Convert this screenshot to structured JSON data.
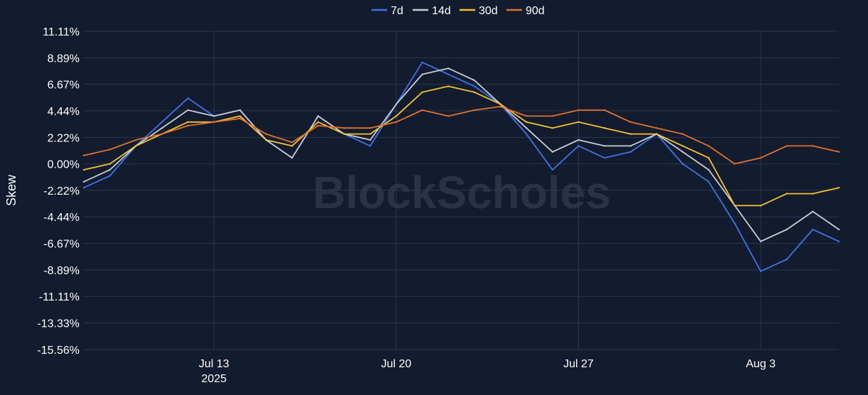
{
  "watermark": "BlockScholes",
  "chart_data": {
    "type": "line",
    "ylabel": "Skew",
    "xlabel": "",
    "x_range": [
      "2025-07-08",
      "2025-08-06"
    ],
    "ylim": [
      -15.56,
      11.11
    ],
    "yticks": [
      11.11,
      8.89,
      6.67,
      4.44,
      2.22,
      0.0,
      -2.22,
      -4.44,
      -6.67,
      -8.89,
      -11.11,
      -13.33,
      -15.56
    ],
    "ytick_labels": [
      "11.11%",
      "8.89%",
      "6.67%",
      "4.44%",
      "2.22%",
      "0.00%",
      "-2.22%",
      "-4.44%",
      "-6.67%",
      "-8.89%",
      "-11.11%",
      "-13.33%",
      "-15.56%"
    ],
    "xticks": [
      {
        "date": "2025-07-13",
        "label": "Jul 13",
        "sublabel": "2025"
      },
      {
        "date": "2025-07-20",
        "label": "Jul 20",
        "sublabel": ""
      },
      {
        "date": "2025-07-27",
        "label": "Jul 27",
        "sublabel": ""
      },
      {
        "date": "2025-08-03",
        "label": "Aug 3",
        "sublabel": ""
      }
    ],
    "grid": true,
    "legend_position": "top-center",
    "series": [
      {
        "name": "7d",
        "color": "#3b74e6",
        "x": [
          "2025-07-08",
          "2025-07-09",
          "2025-07-10",
          "2025-07-11",
          "2025-07-12",
          "2025-07-13",
          "2025-07-14",
          "2025-07-15",
          "2025-07-16",
          "2025-07-17",
          "2025-07-18",
          "2025-07-19",
          "2025-07-20",
          "2025-07-21",
          "2025-07-22",
          "2025-07-23",
          "2025-07-24",
          "2025-07-25",
          "2025-07-26",
          "2025-07-27",
          "2025-07-28",
          "2025-07-29",
          "2025-07-30",
          "2025-07-31",
          "2025-08-01",
          "2025-08-02",
          "2025-08-03",
          "2025-08-04",
          "2025-08-05",
          "2025-08-06"
        ],
        "values": [
          -2.0,
          -1.0,
          1.5,
          3.5,
          5.5,
          4.0,
          4.5,
          2.0,
          0.5,
          4.0,
          2.5,
          1.5,
          5.0,
          8.5,
          7.5,
          6.5,
          5.0,
          2.5,
          -0.5,
          1.5,
          0.5,
          1.0,
          2.5,
          0.0,
          -1.5,
          -5.0,
          -9.0,
          -8.0,
          -5.5,
          -6.5
        ]
      },
      {
        "name": "14d",
        "color": "#c9ccd3",
        "x": [
          "2025-07-08",
          "2025-07-09",
          "2025-07-10",
          "2025-07-11",
          "2025-07-12",
          "2025-07-13",
          "2025-07-14",
          "2025-07-15",
          "2025-07-16",
          "2025-07-17",
          "2025-07-18",
          "2025-07-19",
          "2025-07-20",
          "2025-07-21",
          "2025-07-22",
          "2025-07-23",
          "2025-07-24",
          "2025-07-25",
          "2025-07-26",
          "2025-07-27",
          "2025-07-28",
          "2025-07-29",
          "2025-07-30",
          "2025-07-31",
          "2025-08-01",
          "2025-08-02",
          "2025-08-03",
          "2025-08-04",
          "2025-08-05",
          "2025-08-06"
        ],
        "values": [
          -1.5,
          -0.5,
          1.5,
          3.0,
          4.5,
          4.0,
          4.5,
          2.0,
          0.5,
          4.0,
          2.5,
          2.0,
          5.0,
          7.5,
          8.0,
          7.0,
          5.0,
          3.0,
          1.0,
          2.0,
          1.5,
          1.5,
          2.5,
          1.0,
          -0.5,
          -3.5,
          -6.5,
          -5.5,
          -4.0,
          -5.5
        ]
      },
      {
        "name": "30d",
        "color": "#f2c230",
        "x": [
          "2025-07-08",
          "2025-07-09",
          "2025-07-10",
          "2025-07-11",
          "2025-07-12",
          "2025-07-13",
          "2025-07-14",
          "2025-07-15",
          "2025-07-16",
          "2025-07-17",
          "2025-07-18",
          "2025-07-19",
          "2025-07-20",
          "2025-07-21",
          "2025-07-22",
          "2025-07-23",
          "2025-07-24",
          "2025-07-25",
          "2025-07-26",
          "2025-07-27",
          "2025-07-28",
          "2025-07-29",
          "2025-07-30",
          "2025-07-31",
          "2025-08-01",
          "2025-08-02",
          "2025-08-03",
          "2025-08-04",
          "2025-08-05",
          "2025-08-06"
        ],
        "values": [
          -0.5,
          0.0,
          1.5,
          2.5,
          3.5,
          3.5,
          4.0,
          2.0,
          1.5,
          3.5,
          2.5,
          2.5,
          4.0,
          6.0,
          6.5,
          6.0,
          5.0,
          3.5,
          3.0,
          3.5,
          3.0,
          2.5,
          2.5,
          1.5,
          0.5,
          -3.5,
          -3.5,
          -2.5,
          -2.5,
          -2.0
        ]
      },
      {
        "name": "90d",
        "color": "#e0722a",
        "x": [
          "2025-07-08",
          "2025-07-09",
          "2025-07-10",
          "2025-07-11",
          "2025-07-12",
          "2025-07-13",
          "2025-07-14",
          "2025-07-15",
          "2025-07-16",
          "2025-07-17",
          "2025-07-18",
          "2025-07-19",
          "2025-07-20",
          "2025-07-21",
          "2025-07-22",
          "2025-07-23",
          "2025-07-24",
          "2025-07-25",
          "2025-07-26",
          "2025-07-27",
          "2025-07-28",
          "2025-07-29",
          "2025-07-30",
          "2025-07-31",
          "2025-08-01",
          "2025-08-02",
          "2025-08-03",
          "2025-08-04",
          "2025-08-05",
          "2025-08-06"
        ],
        "values": [
          0.7,
          1.2,
          2.0,
          2.5,
          3.2,
          3.5,
          3.8,
          2.5,
          1.8,
          3.2,
          3.0,
          3.0,
          3.5,
          4.5,
          4.0,
          4.5,
          4.8,
          4.0,
          4.0,
          4.5,
          4.5,
          3.5,
          3.0,
          2.5,
          1.5,
          0.0,
          0.5,
          1.5,
          1.5,
          1.0
        ]
      }
    ]
  }
}
